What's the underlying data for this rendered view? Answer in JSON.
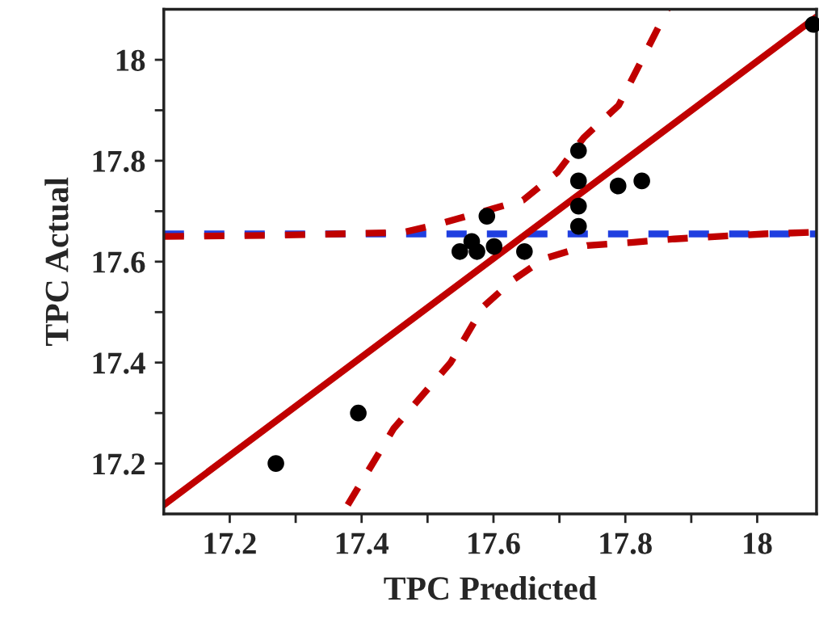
{
  "chart_data": {
    "type": "scatter",
    "xlabel": "TPC Predicted",
    "ylabel": "TPC Actual",
    "xlim": [
      17.1,
      18.09
    ],
    "ylim": [
      17.1,
      18.1
    ],
    "xticks": [
      17.2,
      {
        "value": 17.3,
        "label": null
      },
      17.4,
      {
        "value": 17.5,
        "label": null
      },
      17.6,
      {
        "value": 17.7,
        "label": null
      },
      17.8,
      {
        "value": 17.9,
        "label": null
      },
      18
    ],
    "yticks": [
      17.2,
      {
        "value": 17.3,
        "label": null
      },
      17.4,
      {
        "value": 17.5,
        "label": null
      },
      17.6,
      {
        "value": 17.7,
        "label": null
      },
      17.8,
      {
        "value": 17.9,
        "label": null
      },
      18
    ],
    "grid": false,
    "ref_lines": [
      {
        "axis": "y",
        "value": 17.655,
        "color": "#1f3fe0",
        "line_style": "dashed"
      }
    ],
    "series": [
      {
        "type": "line",
        "color": "#c00000",
        "line_style": "dashed",
        "x": [
          17.1,
          17.254,
          17.364,
          17.463,
          17.516,
          17.645,
          17.697,
          17.737,
          17.79,
          17.864
        ],
        "values": [
          17.65,
          17.652,
          17.655,
          17.658,
          17.674,
          17.722,
          17.777,
          17.846,
          17.91,
          18.1
        ]
      },
      {
        "type": "line",
        "color": "#c00000",
        "line_style": "dashed",
        "x": [
          17.379,
          17.449,
          17.535,
          17.584,
          17.63,
          17.677,
          17.742,
          17.809,
          17.874,
          18.01,
          18.08
        ],
        "values": [
          17.118,
          17.27,
          17.4,
          17.51,
          17.564,
          17.606,
          17.632,
          17.638,
          17.645,
          17.655,
          17.658
        ]
      },
      {
        "type": "line",
        "color": "#c00000",
        "line_style": "solid",
        "x": [
          17.1,
          18.09
        ],
        "values": [
          17.118,
          18.085
        ]
      },
      {
        "color": "#000000",
        "marker": "circle",
        "x": [
          17.27,
          17.395,
          17.549,
          17.567,
          17.575,
          17.59,
          17.601,
          17.647,
          17.729,
          17.729,
          17.729,
          17.729,
          17.789,
          17.825,
          18.085
        ],
        "values": [
          17.2,
          17.3,
          17.62,
          17.64,
          17.62,
          17.69,
          17.63,
          17.62,
          17.82,
          17.76,
          17.71,
          17.67,
          17.75,
          17.76,
          18.07
        ]
      }
    ]
  }
}
